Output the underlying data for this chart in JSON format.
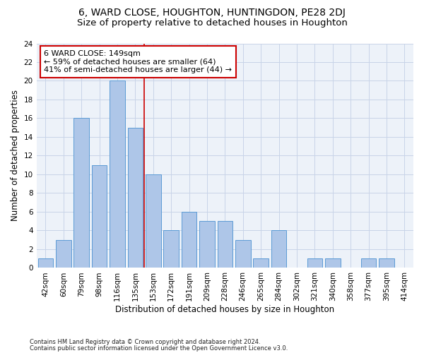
{
  "title": "6, WARD CLOSE, HOUGHTON, HUNTINGDON, PE28 2DJ",
  "subtitle": "Size of property relative to detached houses in Houghton",
  "xlabel": "Distribution of detached houses by size in Houghton",
  "ylabel": "Number of detached properties",
  "bin_labels": [
    "42sqm",
    "60sqm",
    "79sqm",
    "98sqm",
    "116sqm",
    "135sqm",
    "153sqm",
    "172sqm",
    "191sqm",
    "209sqm",
    "228sqm",
    "246sqm",
    "265sqm",
    "284sqm",
    "302sqm",
    "321sqm",
    "340sqm",
    "358sqm",
    "377sqm",
    "395sqm",
    "414sqm"
  ],
  "bar_values": [
    1,
    3,
    16,
    11,
    20,
    15,
    10,
    4,
    6,
    5,
    5,
    3,
    1,
    4,
    0,
    1,
    1,
    0,
    1,
    1,
    0
  ],
  "bar_color": "#aec6e8",
  "bar_edge_color": "#5b9bd5",
  "grid_color": "#c8d4e8",
  "background_color": "#edf2f9",
  "vline_x_index": 6,
  "vline_color": "#cc0000",
  "annotation_line1": "6 WARD CLOSE: 149sqm",
  "annotation_line2": "← 59% of detached houses are smaller (64)",
  "annotation_line3": "41% of semi-detached houses are larger (44) →",
  "annotation_box_color": "#ffffff",
  "annotation_box_edge": "#cc0000",
  "ylim": [
    0,
    24
  ],
  "yticks": [
    0,
    2,
    4,
    6,
    8,
    10,
    12,
    14,
    16,
    18,
    20,
    22,
    24
  ],
  "footnote1": "Contains HM Land Registry data © Crown copyright and database right 2024.",
  "footnote2": "Contains public sector information licensed under the Open Government Licence v3.0.",
  "title_fontsize": 10,
  "subtitle_fontsize": 9.5,
  "label_fontsize": 8.5,
  "tick_fontsize": 7.5,
  "annot_fontsize": 8
}
